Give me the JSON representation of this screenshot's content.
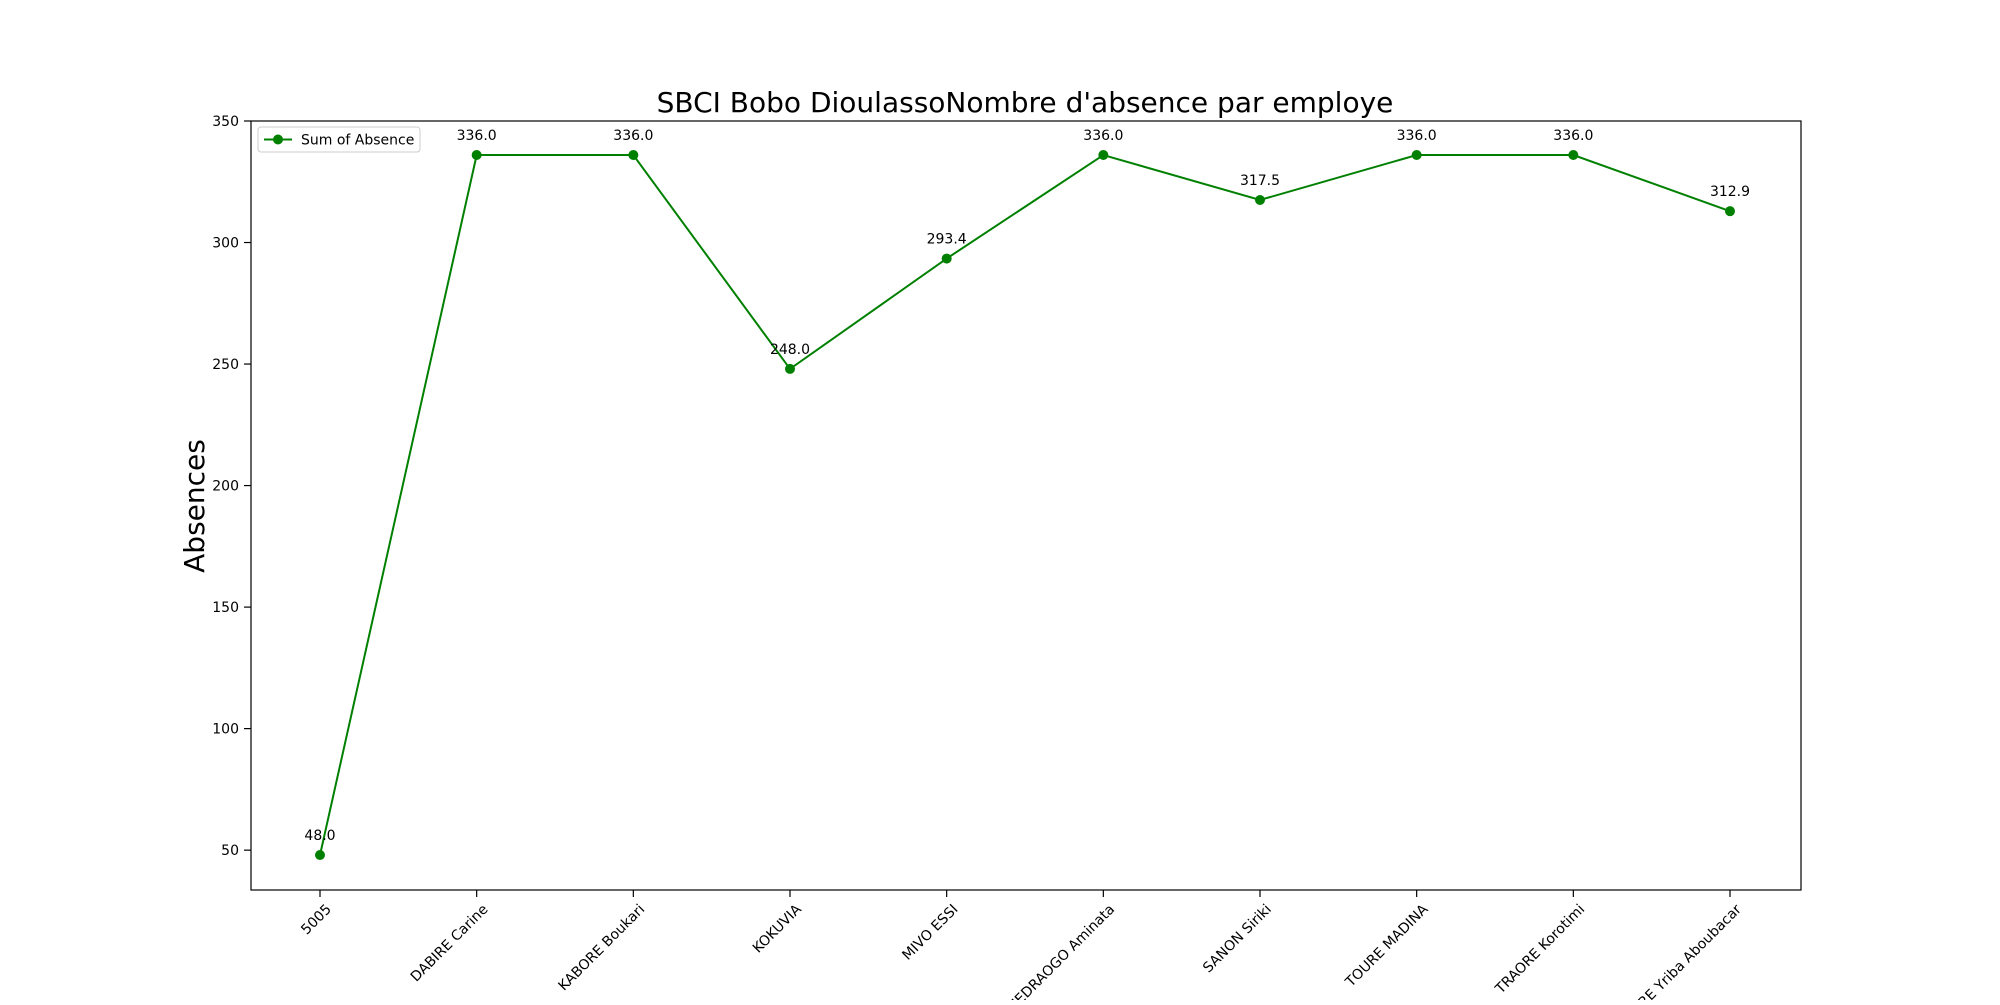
{
  "chart_data": {
    "type": "line",
    "title": "SBCI Bobo DioulassoNombre d'absence par employe",
    "xlabel": "",
    "ylabel": "Absences",
    "ylim": [
      33.6,
      350
    ],
    "yticks": [
      50,
      100,
      150,
      200,
      250,
      300,
      350
    ],
    "categories": [
      "5005",
      "DABIRE Carine",
      "KABORE Boukari",
      "KOKUVIA",
      "MIVO ESSI",
      "OUEDRAOGO Aminata",
      "SANON Siriki",
      "TOURE MADINA",
      "TRAORE Korotimi",
      "TRAORE Yriba Aboubacar"
    ],
    "series": [
      {
        "name": "Sum of Absence",
        "color": "#008000",
        "values": [
          48.0,
          336.0,
          336.0,
          248.0,
          293.4,
          336.0,
          317.5,
          336.0,
          336.0,
          312.9
        ],
        "data_labels": [
          "48.0",
          "336.0",
          "336.0",
          "248.0",
          "293.4",
          "336.0",
          "317.5",
          "336.0",
          "336.0",
          "312.9"
        ]
      }
    ],
    "legend": "top-left",
    "grid": false
  }
}
